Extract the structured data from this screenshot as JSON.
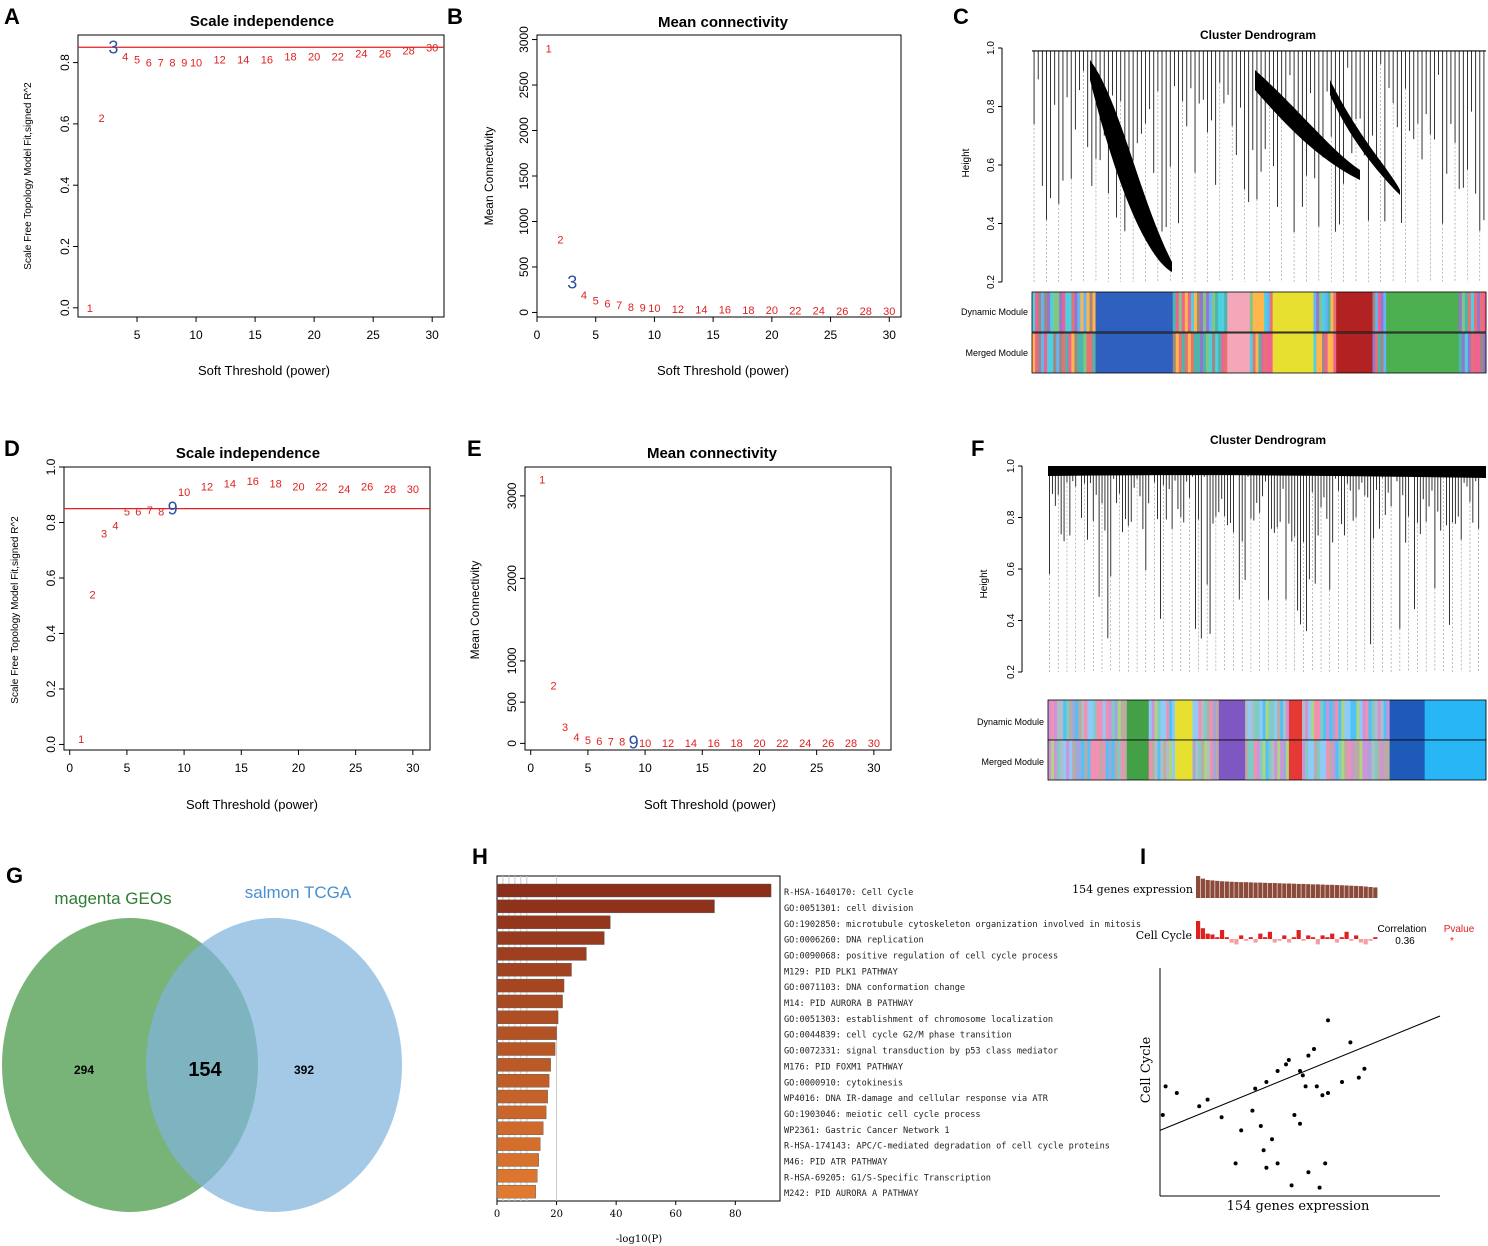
{
  "colors": {
    "point": "#e02020",
    "highlight": "#2b4fa8",
    "cutoff": "#e02020",
    "venn_a": "#5aa35a",
    "venn_b": "#7fb4dc",
    "venn_a_text": "#2e7d32",
    "venn_b_text": "#4a8fcf",
    "bar_dark": "#8b2e1a",
    "bar_light": "#e07a30",
    "heat_pos": "#e02020",
    "heat_neg": "#f4a0a0",
    "expr_bar": "#8c4a3a"
  },
  "panels": {
    "A": {
      "label": "A",
      "chart_data": {
        "type": "scatter",
        "title": "Scale independence",
        "xlabel": "Soft Threshold (power)",
        "ylabel": "Scale Free Topology Model Fit,signed R^2",
        "xlim": [
          0,
          31
        ],
        "ylim": [
          -0.03,
          0.89
        ],
        "xticks": [
          5,
          10,
          15,
          20,
          25,
          30
        ],
        "yticks": [
          0.0,
          0.2,
          0.4,
          0.6,
          0.8
        ],
        "cutoff": 0.85,
        "highlight_power": 3,
        "x": [
          1,
          2,
          3,
          4,
          5,
          6,
          7,
          8,
          9,
          10,
          12,
          14,
          16,
          18,
          20,
          22,
          24,
          26,
          28,
          30
        ],
        "y": [
          0.0,
          0.62,
          0.85,
          0.82,
          0.81,
          0.8,
          0.8,
          0.8,
          0.8,
          0.8,
          0.81,
          0.81,
          0.81,
          0.82,
          0.82,
          0.82,
          0.83,
          0.83,
          0.84,
          0.85
        ]
      }
    },
    "B": {
      "label": "B",
      "chart_data": {
        "type": "scatter",
        "title": "Mean connectivity",
        "xlabel": "Soft Threshold (power)",
        "ylabel": "Mean Connectivity",
        "xlim": [
          0,
          31
        ],
        "ylim": [
          -50,
          3050
        ],
        "xticks": [
          0,
          5,
          10,
          15,
          20,
          25,
          30
        ],
        "yticks": [
          0,
          500,
          1000,
          1500,
          2000,
          2500,
          3000
        ],
        "highlight_power": 3,
        "x": [
          1,
          2,
          3,
          4,
          5,
          6,
          7,
          8,
          9,
          10,
          12,
          14,
          16,
          18,
          20,
          22,
          24,
          26,
          28,
          30
        ],
        "y": [
          2900,
          800,
          330,
          190,
          130,
          100,
          80,
          60,
          55,
          50,
          40,
          35,
          30,
          28,
          25,
          22,
          20,
          18,
          16,
          15
        ]
      }
    },
    "C": {
      "label": "C",
      "title": "Cluster Dendrogram",
      "ylabel": "Height",
      "yticks": [
        "0.2",
        "0.4",
        "0.6",
        "0.8",
        "1.0"
      ],
      "rows": [
        "Dynamic Module",
        "Merged Module"
      ]
    },
    "D": {
      "label": "D",
      "chart_data": {
        "type": "scatter",
        "title": "Scale independence",
        "xlabel": "Soft Threshold (power)",
        "ylabel": "Scale Free Topology Model Fit,signed R^2",
        "xlim": [
          -0.5,
          31.5
        ],
        "ylim": [
          -0.02,
          1.0
        ],
        "xticks": [
          0,
          5,
          10,
          15,
          20,
          25,
          30
        ],
        "yticks": [
          0.0,
          0.2,
          0.4,
          0.6,
          0.8,
          1.0
        ],
        "cutoff": 0.85,
        "highlight_power": 9,
        "x": [
          1,
          2,
          3,
          4,
          5,
          6,
          7,
          8,
          9,
          10,
          12,
          14,
          16,
          18,
          20,
          22,
          24,
          26,
          28,
          30
        ],
        "y": [
          0.02,
          0.54,
          0.76,
          0.79,
          0.84,
          0.84,
          0.845,
          0.84,
          0.85,
          0.91,
          0.93,
          0.94,
          0.95,
          0.94,
          0.93,
          0.93,
          0.92,
          0.93,
          0.92,
          0.92
        ]
      }
    },
    "E": {
      "label": "E",
      "chart_data": {
        "type": "scatter",
        "title": "Mean connectivity",
        "xlabel": "Soft Threshold (power)",
        "ylabel": "Mean Connectivity",
        "xlim": [
          -0.5,
          31.5
        ],
        "ylim": [
          -80,
          3350
        ],
        "xticks": [
          0,
          5,
          10,
          15,
          20,
          25,
          30
        ],
        "yticks": [
          0,
          500,
          1000,
          2000,
          3000
        ],
        "highlight_power": 9,
        "x": [
          1,
          2,
          3,
          4,
          5,
          6,
          7,
          8,
          9,
          10,
          12,
          14,
          16,
          18,
          20,
          22,
          24,
          26,
          28,
          30
        ],
        "y": [
          3200,
          700,
          200,
          80,
          40,
          30,
          25,
          20,
          10,
          5,
          3,
          3,
          2,
          2,
          2,
          2,
          2,
          2,
          2,
          2
        ]
      }
    },
    "F": {
      "label": "F",
      "title": "Cluster Dendrogram",
      "ylabel": "Height",
      "yticks": [
        "0.2",
        "0.4",
        "0.6",
        "0.8",
        "1.0"
      ],
      "rows": [
        "Dynamic Module",
        "Merged Module"
      ]
    },
    "G": {
      "label": "G",
      "set_a": "magenta GEOs",
      "set_b": "salmon TCGA",
      "only_a": "294",
      "both": "154",
      "only_b": "392"
    },
    "H": {
      "label": "H",
      "chart_data": {
        "type": "bar",
        "xlabel": "-log10(P)",
        "xlim": [
          0,
          95
        ],
        "xticks": [
          0,
          20,
          40,
          60,
          80
        ],
        "categories": [
          "R-HSA-1640170: Cell Cycle",
          "GO:0051301: cell division",
          "GO:1902850: microtubule cytoskeleton organization involved in mitosis",
          "GO:0006260: DNA replication",
          "GO:0090068: positive regulation of cell cycle process",
          "M129: PID PLK1 PATHWAY",
          "GO:0071103: DNA conformation change",
          "M14: PID AURORA B PATHWAY",
          "GO:0051303: establishment of chromosome localization",
          "GO:0044839: cell cycle G2/M phase transition",
          "GO:0072331: signal transduction by p53 class mediator",
          "M176: PID FOXM1 PATHWAY",
          "GO:0000910: cytokinesis",
          "WP4016: DNA IR-damage and cellular response via ATR",
          "GO:1903046: meiotic cell cycle process",
          "WP2361: Gastric Cancer Network 1",
          "R-HSA-174143: APC/C-mediated degradation of cell cycle proteins",
          "M46: PID ATR PATHWAY",
          "R-HSA-69205: G1/S-Specific Transcription",
          "M242: PID AURORA A PATHWAY"
        ],
        "values": [
          92,
          73,
          38,
          36,
          30,
          25,
          22.5,
          22,
          20.5,
          20,
          19.5,
          18,
          17.5,
          17,
          16.5,
          15.5,
          14.5,
          14,
          13.5,
          13
        ]
      }
    },
    "I": {
      "label": "I",
      "expr_label": "154 genes expression",
      "cycle_label": "Cell Cycle",
      "corr_label": "Correlation",
      "corr_value": "0.36",
      "pvalue_label": "Pvalue",
      "pvalue_mark": "*",
      "chart_data": {
        "type": "scatter",
        "xlabel": "154 genes expression",
        "ylabel": "Cell Cycle",
        "correlation": 0.36,
        "xlim": [
          0,
          1
        ],
        "ylim": [
          0,
          1
        ],
        "trend": [
          [
            0,
            0.28
          ],
          [
            1,
            0.8
          ]
        ],
        "points": [
          [
            0.01,
            0.35
          ],
          [
            0.02,
            0.48
          ],
          [
            0.06,
            0.45
          ],
          [
            0.14,
            0.39
          ],
          [
            0.17,
            0.42
          ],
          [
            0.22,
            0.34
          ],
          [
            0.27,
            0.13
          ],
          [
            0.29,
            0.28
          ],
          [
            0.33,
            0.37
          ],
          [
            0.34,
            0.47
          ],
          [
            0.36,
            0.3
          ],
          [
            0.37,
            0.19
          ],
          [
            0.38,
            0.11
          ],
          [
            0.38,
            0.5
          ],
          [
            0.4,
            0.24
          ],
          [
            0.42,
            0.55
          ],
          [
            0.45,
            0.58
          ],
          [
            0.46,
            0.6
          ],
          [
            0.48,
            0.35
          ],
          [
            0.5,
            0.55
          ],
          [
            0.5,
            0.31
          ],
          [
            0.51,
            0.53
          ],
          [
            0.52,
            0.48
          ],
          [
            0.53,
            0.62
          ],
          [
            0.55,
            0.65
          ],
          [
            0.56,
            0.48
          ],
          [
            0.58,
            0.44
          ],
          [
            0.59,
            0.13
          ],
          [
            0.6,
            0.45
          ],
          [
            0.6,
            0.78
          ],
          [
            0.65,
            0.5
          ],
          [
            0.68,
            0.68
          ],
          [
            0.71,
            0.52
          ],
          [
            0.73,
            0.56
          ],
          [
            0.42,
            0.13
          ],
          [
            0.47,
            0.03
          ],
          [
            0.53,
            0.09
          ],
          [
            0.57,
            0.02
          ]
        ],
        "expr_values": [
          1.0,
          0.88,
          0.82,
          0.8,
          0.78,
          0.76,
          0.75,
          0.74,
          0.73,
          0.72,
          0.72,
          0.71,
          0.7,
          0.7,
          0.69,
          0.68,
          0.68,
          0.67,
          0.66,
          0.66,
          0.65,
          0.64,
          0.64,
          0.63,
          0.62,
          0.62,
          0.61,
          0.6,
          0.6,
          0.59,
          0.58,
          0.57,
          0.56,
          0.55,
          0.54,
          0.52,
          0.5,
          0.48
        ],
        "cycle_values": [
          1.0,
          0.6,
          0.3,
          0.25,
          0.1,
          0.5,
          0.1,
          -0.2,
          -0.3,
          0.2,
          -0.1,
          0.1,
          -0.2,
          0.3,
          0.1,
          0.4,
          -0.2,
          -0.1,
          0.2,
          -0.2,
          0.1,
          0.5,
          -0.1,
          0.2,
          0.1,
          -0.3,
          0.2,
          0.1,
          0.3,
          -0.2,
          0.1,
          0.4,
          -0.1,
          0.2,
          -0.2,
          -0.3,
          -0.1,
          0.1
        ]
      }
    }
  }
}
